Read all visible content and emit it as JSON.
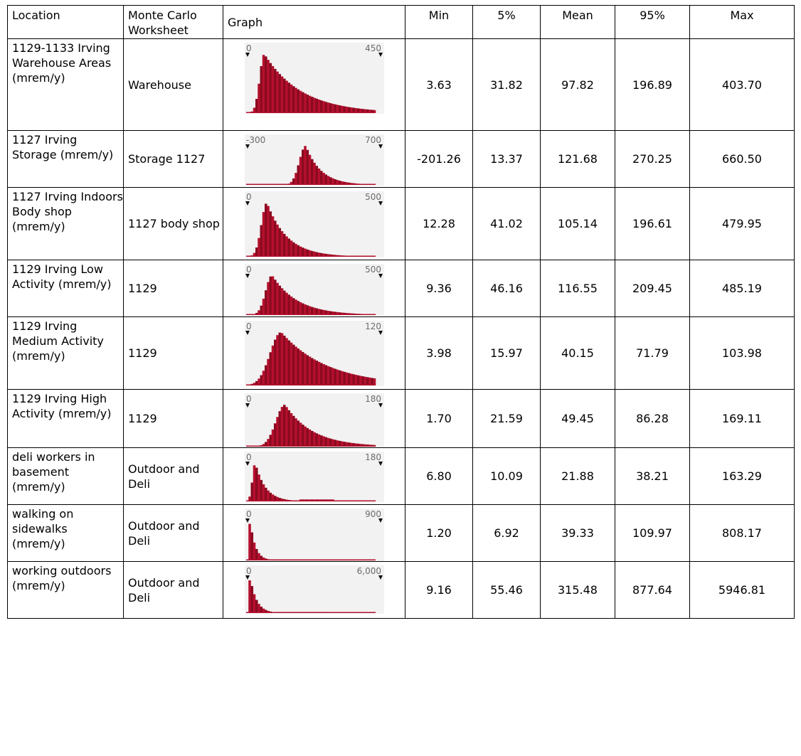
{
  "headers": {
    "location": "Location",
    "worksheet": "Monte Carlo Worksheet",
    "graph": "Graph",
    "min": "Min",
    "p5": "5%",
    "mean": "Mean",
    "p95": "95%",
    "max": "Max"
  },
  "colors": {
    "bar": "#b5102e",
    "bar_dark": "#8a0a20",
    "thumb_bg": "#f2f2f2"
  },
  "rows": [
    {
      "location": "1129-1133 Irving Warehouse Areas (mrem/y)",
      "worksheet": "Warehouse",
      "graph": {
        "min_label": "0",
        "max_label": "450"
      },
      "min": "3.63",
      "p5": "31.82",
      "mean": "97.82",
      "p95": "196.89",
      "max": "403.70"
    },
    {
      "location": "1127 Irving Storage (mrem/y)",
      "worksheet": "Storage 1127",
      "graph": {
        "min_label": "-300",
        "max_label": "700"
      },
      "min": "-201.26",
      "p5": "13.37",
      "mean": "121.68",
      "p95": "270.25",
      "max": "660.50"
    },
    {
      "location": "1127 Irving Indoors Body shop (mrem/y)",
      "worksheet": "1127 body shop",
      "graph": {
        "min_label": "0",
        "max_label": "500"
      },
      "min": "12.28",
      "p5": "41.02",
      "mean": "105.14",
      "p95": "196.61",
      "max": "479.95"
    },
    {
      "location": "1129 Irving Low Activity (mrem/y)",
      "worksheet": "1129",
      "graph": {
        "min_label": "0",
        "max_label": "500"
      },
      "min": "9.36",
      "p5": "46.16",
      "mean": "116.55",
      "p95": "209.45",
      "max": "485.19"
    },
    {
      "location": "1129 Irving Medium Activity (mrem/y)",
      "worksheet": "1129",
      "graph": {
        "min_label": "0",
        "max_label": "120"
      },
      "min": "3.98",
      "p5": "15.97",
      "mean": "40.15",
      "p95": "71.79",
      "max": "103.98"
    },
    {
      "location": "1129 Irving High Activity (mrem/y)",
      "worksheet": "1129",
      "graph": {
        "min_label": "0",
        "max_label": "180"
      },
      "min": "1.70",
      "p5": "21.59",
      "mean": "49.45",
      "p95": "86.28",
      "max": "169.11"
    },
    {
      "location": "deli workers in basement (mrem/y)",
      "worksheet": "Outdoor and Deli",
      "graph": {
        "min_label": "0",
        "max_label": "180"
      },
      "min": "6.80",
      "p5": "10.09",
      "mean": "21.88",
      "p95": "38.21",
      "max": "163.29"
    },
    {
      "location": "walking on sidewalks (mrem/y)",
      "worksheet": "Outdoor and Deli",
      "graph": {
        "min_label": "0",
        "max_label": "900"
      },
      "min": "1.20",
      "p5": "6.92",
      "mean": "39.33",
      "p95": "109.97",
      "max": "808.17"
    },
    {
      "location": "working outdoors (mrem/y)",
      "worksheet": "Outdoor and Deli",
      "graph": {
        "min_label": "0",
        "max_label": "6,000"
      },
      "min": "9.16",
      "p5": "55.46",
      "mean": "315.48",
      "p95": "877.64",
      "max": "5946.81"
    }
  ]
}
